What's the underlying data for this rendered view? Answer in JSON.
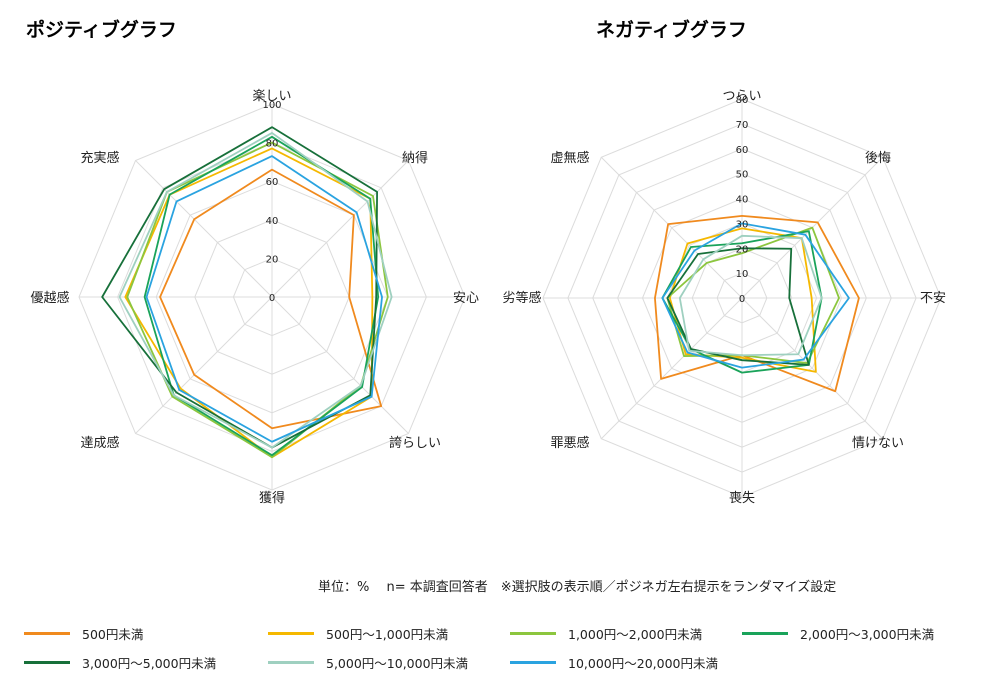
{
  "note": "単位：%　 n= 本調査回答者　※選択肢の表示順／ポジネガ左右提示をランダマイズ設定",
  "legend": [
    {
      "name": "500円未満",
      "color": "#f08a1e"
    },
    {
      "name": "500円〜1,000円未満",
      "color": "#f5b800"
    },
    {
      "name": "1,000円〜2,000円未満",
      "color": "#8cc63e"
    },
    {
      "name": "2,000円〜3,000円未満",
      "color": "#1aa35a"
    },
    {
      "name": "3,000円〜5,000円未満",
      "color": "#17703a"
    },
    {
      "name": "5,000円〜10,000円未満",
      "color": "#9fd0c0"
    },
    {
      "name": "10,000円〜20,000円未満",
      "color": "#2aa3e0"
    }
  ],
  "chart_data": [
    {
      "type": "radar",
      "title": "ポジティブグラフ",
      "categories": [
        "楽しい",
        "納得",
        "安心",
        "誇らしい",
        "獲得",
        "達成感",
        "優越感",
        "充実感"
      ],
      "ticks": [
        "0",
        "20",
        "40",
        "60",
        "80",
        "100"
      ],
      "rlim": [
        0,
        100
      ],
      "grid": true,
      "series": [
        {
          "name": "500円未満",
          "values": [
            66,
            60,
            40,
            80,
            68,
            57,
            58,
            57
          ]
        },
        {
          "name": "500円〜1,000円未満",
          "values": [
            77,
            72,
            52,
            73,
            83,
            67,
            76,
            75
          ]
        },
        {
          "name": "1,000円〜2,000円未満",
          "values": [
            80,
            74,
            60,
            65,
            83,
            73,
            75,
            77
          ]
        },
        {
          "name": "2,000円〜3,000円未満",
          "values": [
            83,
            72,
            55,
            66,
            82,
            72,
            66,
            75
          ]
        },
        {
          "name": "3,000円〜5,000円未満",
          "values": [
            88,
            77,
            54,
            72,
            78,
            70,
            88,
            79
          ]
        },
        {
          "name": "5,000円〜10,000円未満",
          "values": [
            85,
            70,
            62,
            65,
            78,
            72,
            79,
            77
          ]
        },
        {
          "name": "10,000円〜20,000円未満",
          "values": [
            73,
            62,
            57,
            73,
            75,
            68,
            65,
            70
          ]
        }
      ]
    },
    {
      "type": "radar",
      "title": "ネガティブグラフ",
      "categories": [
        "つらい",
        "後悔",
        "不安",
        "情けない",
        "喪失",
        "罪悪感",
        "劣等感",
        "虚無感"
      ],
      "ticks": [
        "0",
        "10",
        "20",
        "30",
        "40",
        "50",
        "60",
        "70",
        "80"
      ],
      "rlim": [
        0,
        80
      ],
      "grid": true,
      "series": [
        {
          "name": "500円未満",
          "values": [
            33,
            43,
            47,
            53,
            23,
            46,
            35,
            42
          ]
        },
        {
          "name": "500円〜1,000円未満",
          "values": [
            28,
            34,
            28,
            42,
            24,
            32,
            29,
            31
          ]
        },
        {
          "name": "1,000円〜2,000円未満",
          "values": [
            18,
            40,
            39,
            37,
            23,
            33,
            30,
            20
          ]
        },
        {
          "name": "2,000円〜3,000円未満",
          "values": [
            22,
            38,
            32,
            38,
            30,
            29,
            32,
            29
          ]
        },
        {
          "name": "3,000円〜5,000円未満",
          "values": [
            20,
            28,
            19,
            38,
            25,
            29,
            30,
            25
          ]
        },
        {
          "name": "5,000円〜10,000円未満",
          "values": [
            25,
            34,
            32,
            32,
            23,
            30,
            25,
            22
          ]
        },
        {
          "name": "10,000円〜20,000円未満",
          "values": [
            30,
            36,
            43,
            35,
            28,
            31,
            32,
            27
          ]
        }
      ]
    }
  ]
}
